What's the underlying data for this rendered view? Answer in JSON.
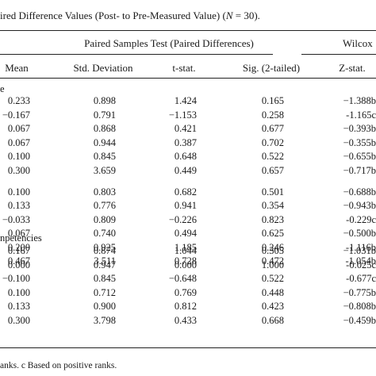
{
  "caption": {
    "before": "ired Difference Values (Post- to Pre-Measured Value) (",
    "n_italic": "N",
    "after": " = 30)."
  },
  "group_headers": {
    "paired": "Paired Samples Test (Paired Differences)",
    "wilcoxon": "Wilcox"
  },
  "col_headers": {
    "mean": "Mean",
    "sd": "Std. Deviation",
    "t": "t-stat.",
    "sig": "Sig. (2-tailed)",
    "z": "Z-stat."
  },
  "section_labels": [
    "e",
    "npetencies"
  ],
  "rows": [
    {
      "mean": "0.233",
      "sd": "0.898",
      "t": "1.424",
      "sig": "0.165",
      "z": "−1.388b"
    },
    {
      "mean": "−0.167",
      "sd": "0.791",
      "t": "−1.153",
      "sig": "0.258",
      "z": "-1.165c"
    },
    {
      "mean": "0.067",
      "sd": "0.868",
      "t": "0.421",
      "sig": "0.677",
      "z": "−0.393b"
    },
    {
      "mean": "0.067",
      "sd": "0.944",
      "t": "0.387",
      "sig": "0.702",
      "z": "−0.355b"
    },
    {
      "mean": "0.100",
      "sd": "0.845",
      "t": "0.648",
      "sig": "0.522",
      "z": "−0.655b"
    },
    {
      "mean": "0.300",
      "sd": "3.659",
      "t": "0.449",
      "sig": "0.657",
      "z": "−0.717b"
    },
    {
      "mean": "0.100",
      "sd": "0.803",
      "t": "0.682",
      "sig": "0.501",
      "z": "−0.688b"
    },
    {
      "mean": "0.133",
      "sd": "0.776",
      "t": "0.941",
      "sig": "0.354",
      "z": "−0.943b"
    },
    {
      "mean": "−0.033",
      "sd": "0.809",
      "t": "−0.226",
      "sig": "0.823",
      "z": "-0.229c"
    },
    {
      "mean": "0.067",
      "sd": "0.740",
      "t": "0.494",
      "sig": "0.625",
      "z": "−0.500b"
    },
    {
      "mean": "0.200",
      "sd": "0.925",
      "t": "1.185",
      "sig": "0.246",
      "z": "-1.116b"
    },
    {
      "mean": "0.467",
      "sd": "3.511",
      "t": "0.728",
      "sig": "0.472",
      "z": "-1.054b"
    },
    {
      "mean": "0.167",
      "sd": "0.874",
      "t": "1.044",
      "sig": "0.305",
      "z": "−1.031b"
    },
    {
      "mean": "0.000",
      "sd": "0.947",
      "t": "0.000",
      "sig": "1.000",
      "z": "-0.025c"
    },
    {
      "mean": "−0.100",
      "sd": "0.845",
      "t": "−0.648",
      "sig": "0.522",
      "z": "-0.677c"
    },
    {
      "mean": "0.100",
      "sd": "0.712",
      "t": "0.769",
      "sig": "0.448",
      "z": "−0.775b"
    },
    {
      "mean": "0.133",
      "sd": "0.900",
      "t": "0.812",
      "sig": "0.423",
      "z": "−0.808b"
    },
    {
      "mean": "0.300",
      "sd": "3.798",
      "t": "0.433",
      "sig": "0.668",
      "z": "−0.459b"
    }
  ],
  "footnote": "anks. c Based on positive ranks."
}
